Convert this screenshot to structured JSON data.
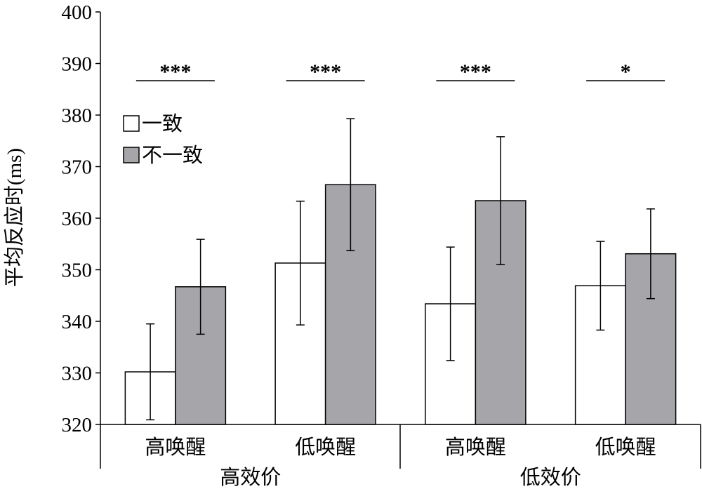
{
  "chart_data": {
    "type": "bar",
    "title": "",
    "ylabel": "平均反应时(ms)",
    "xlabel": "",
    "ylim": [
      320,
      400
    ],
    "yticks": [
      320,
      330,
      340,
      350,
      360,
      370,
      380,
      390,
      400
    ],
    "categories": [
      "高唤醒",
      "低唤醒",
      "高唤醒",
      "低唤醒"
    ],
    "groups": [
      {
        "label": "高效价",
        "categories": [
          0,
          1
        ]
      },
      {
        "label": "低效价",
        "categories": [
          2,
          3
        ]
      }
    ],
    "series": [
      {
        "name": "一致",
        "color": "#ffffff",
        "values": [
          330.2,
          351.3,
          343.4,
          346.9
        ],
        "error": [
          9.3,
          12.0,
          11.0,
          8.6
        ]
      },
      {
        "name": "不一致",
        "color": "#a6a6aa",
        "values": [
          346.7,
          366.5,
          363.4,
          353.1
        ],
        "error": [
          9.2,
          12.8,
          12.4,
          8.7
        ]
      }
    ],
    "significance": [
      "***",
      "***",
      "***",
      "*"
    ],
    "legend": "top-left",
    "grid": false
  }
}
